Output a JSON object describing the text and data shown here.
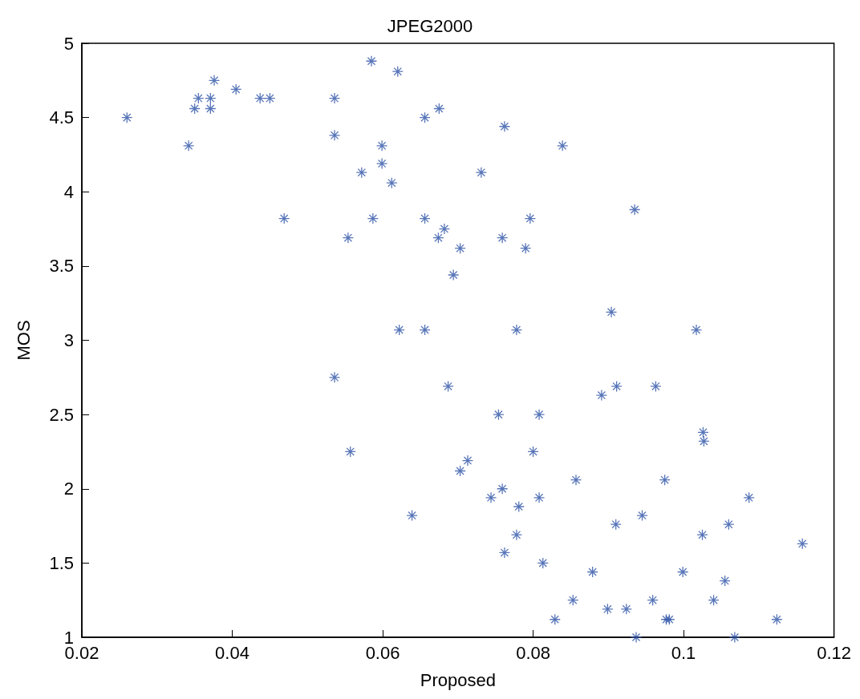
{
  "chart_data": {
    "type": "scatter",
    "title": "JPEG2000",
    "xlabel": "Proposed",
    "ylabel": "MOS",
    "xlim": [
      0.02,
      0.12
    ],
    "xticks": [
      0.02,
      0.04,
      0.06,
      0.08,
      0.1,
      0.12
    ],
    "ylim": [
      1,
      5
    ],
    "yticks": [
      1,
      1.5,
      2,
      2.5,
      3,
      3.5,
      4,
      4.5,
      5
    ],
    "grid": false,
    "marker": "cross",
    "series": [
      {
        "color": "#2e54a8",
        "x": [
          0.026,
          0.0342,
          0.035,
          0.0355,
          0.0371,
          0.0371,
          0.0376,
          0.0405,
          0.0437,
          0.045,
          0.0469,
          0.0536,
          0.0536,
          0.0536,
          0.0554,
          0.0557,
          0.0572,
          0.0585,
          0.0587,
          0.0599,
          0.0599,
          0.0612,
          0.062,
          0.0622,
          0.0639,
          0.0656,
          0.0656,
          0.0656,
          0.0675,
          0.0674,
          0.0682,
          0.0687,
          0.0694,
          0.0703,
          0.0703,
          0.0713,
          0.0731,
          0.0744,
          0.0754,
          0.0759,
          0.0759,
          0.0762,
          0.0762,
          0.0778,
          0.0778,
          0.0781,
          0.079,
          0.0796,
          0.08,
          0.0808,
          0.0808,
          0.0813,
          0.0829,
          0.0839,
          0.0853,
          0.0857,
          0.0879,
          0.0891,
          0.0899,
          0.0904,
          0.091,
          0.0911,
          0.0924,
          0.0935,
          0.0937,
          0.0945,
          0.0959,
          0.0963,
          0.0975,
          0.0977,
          0.0981,
          0.0999,
          0.1017,
          0.1025,
          0.1026,
          0.1027,
          0.104,
          0.1055,
          0.106,
          0.1068,
          0.1087,
          0.1124,
          0.1158
        ],
        "values": [
          4.5,
          4.31,
          4.56,
          4.63,
          4.63,
          4.56,
          4.75,
          4.69,
          4.63,
          4.63,
          3.82,
          4.63,
          4.38,
          2.75,
          3.69,
          2.25,
          4.13,
          4.88,
          3.82,
          4.31,
          4.19,
          4.06,
          4.81,
          3.07,
          1.82,
          4.5,
          3.82,
          3.07,
          4.56,
          3.69,
          3.75,
          2.69,
          3.44,
          3.62,
          2.12,
          2.19,
          4.13,
          1.94,
          2.5,
          2.0,
          3.69,
          1.57,
          4.44,
          3.07,
          1.69,
          1.88,
          3.62,
          3.82,
          2.25,
          1.94,
          2.5,
          1.5,
          1.12,
          4.31,
          1.25,
          2.06,
          1.44,
          2.63,
          1.19,
          3.19,
          1.76,
          2.69,
          1.19,
          3.88,
          1.0,
          1.82,
          1.25,
          2.69,
          2.06,
          1.12,
          1.12,
          1.44,
          3.07,
          1.69,
          2.38,
          2.32,
          1.25,
          1.38,
          1.76,
          1.0,
          1.94,
          1.12,
          1.63
        ]
      }
    ]
  }
}
